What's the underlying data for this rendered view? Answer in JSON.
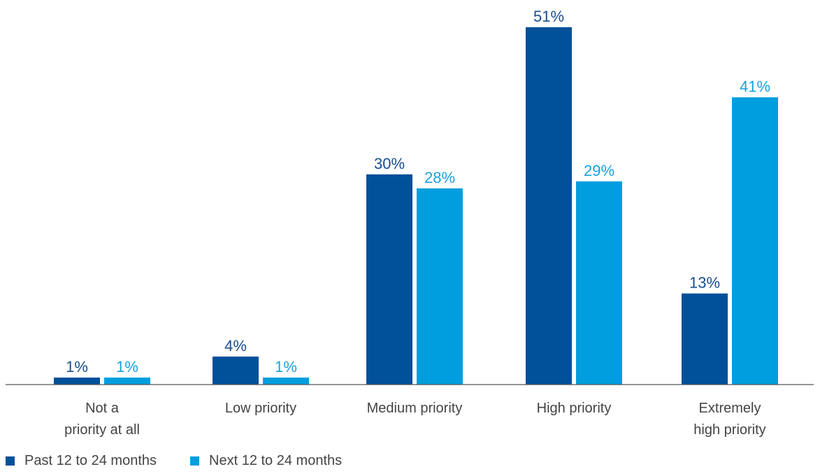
{
  "chart_data": {
    "type": "bar",
    "categories": [
      [
        "Not a",
        "priority at all"
      ],
      [
        "Low priority"
      ],
      [
        "Medium priority"
      ],
      [
        "High priority"
      ],
      [
        "Extremely",
        "high priority"
      ]
    ],
    "series": [
      {
        "name": "Past 12 to 24 months",
        "color": "#00509a",
        "values": [
          1,
          4,
          30,
          51,
          13
        ],
        "labels": [
          "1%",
          "4%",
          "30%",
          "51%",
          "13%"
        ]
      },
      {
        "name": "Next 12 to 24 months",
        "color": "#009ede",
        "values": [
          1,
          1,
          28,
          29,
          41
        ],
        "labels": [
          "1%",
          "1%",
          "28%",
          "29%",
          "41%"
        ]
      }
    ],
    "ylim": [
      0,
      51
    ],
    "grid": false,
    "legend_position": "bottom-left"
  }
}
